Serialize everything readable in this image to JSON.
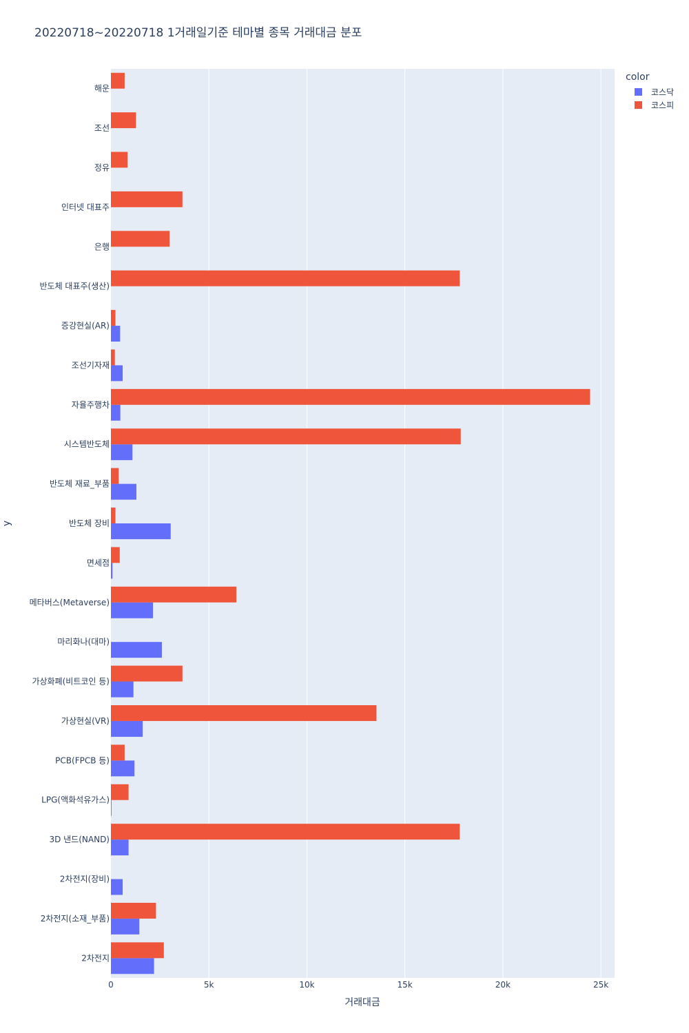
{
  "chart_data": {
    "type": "bar",
    "orientation": "horizontal",
    "barmode": "group",
    "title": "20220718~20220718 1거래일기준 테마별 종목 거래대금 분포",
    "xlabel": "거래대금",
    "ylabel": "y",
    "xlim": [
      0,
      25700
    ],
    "x_ticks": [
      0,
      5000,
      10000,
      15000,
      20000,
      25000
    ],
    "x_tick_labels": [
      "0",
      "5k",
      "10k",
      "15k",
      "20k",
      "25k"
    ],
    "grid": true,
    "legend_position": "top-right",
    "legend_title": "color",
    "categories": [
      "2차전지",
      "2차전지(소재_부품)",
      "2차전지(장비)",
      "3D 낸드(NAND)",
      "LPG(액화석유가스)",
      "PCB(FPCB 등)",
      "가상현실(VR)",
      "가상화폐(비트코인 등)",
      "마리화나(대마)",
      "메타버스(Metaverse)",
      "면세점",
      "반도체 장비",
      "반도체 재료_부품",
      "시스템반도체",
      "자율주행차",
      "조선기자재",
      "증강현실(AR)",
      "반도체 대표주(생산)",
      "은행",
      "인터넷 대표주",
      "정유",
      "조선",
      "해운"
    ],
    "series": [
      {
        "name": "코스닥",
        "color": "#636efa",
        "values": [
          2200,
          1450,
          600,
          900,
          30,
          1200,
          1620,
          1150,
          2600,
          2150,
          80,
          3050,
          1300,
          1100,
          480,
          600,
          470,
          null,
          null,
          null,
          null,
          null,
          null
        ]
      },
      {
        "name": "코스피",
        "color": "#ef553b",
        "values": [
          2700,
          2300,
          null,
          17800,
          900,
          700,
          13550,
          3650,
          null,
          6400,
          450,
          230,
          400,
          17850,
          24450,
          200,
          230,
          17800,
          3000,
          3650,
          850,
          1280,
          700
        ]
      }
    ]
  }
}
